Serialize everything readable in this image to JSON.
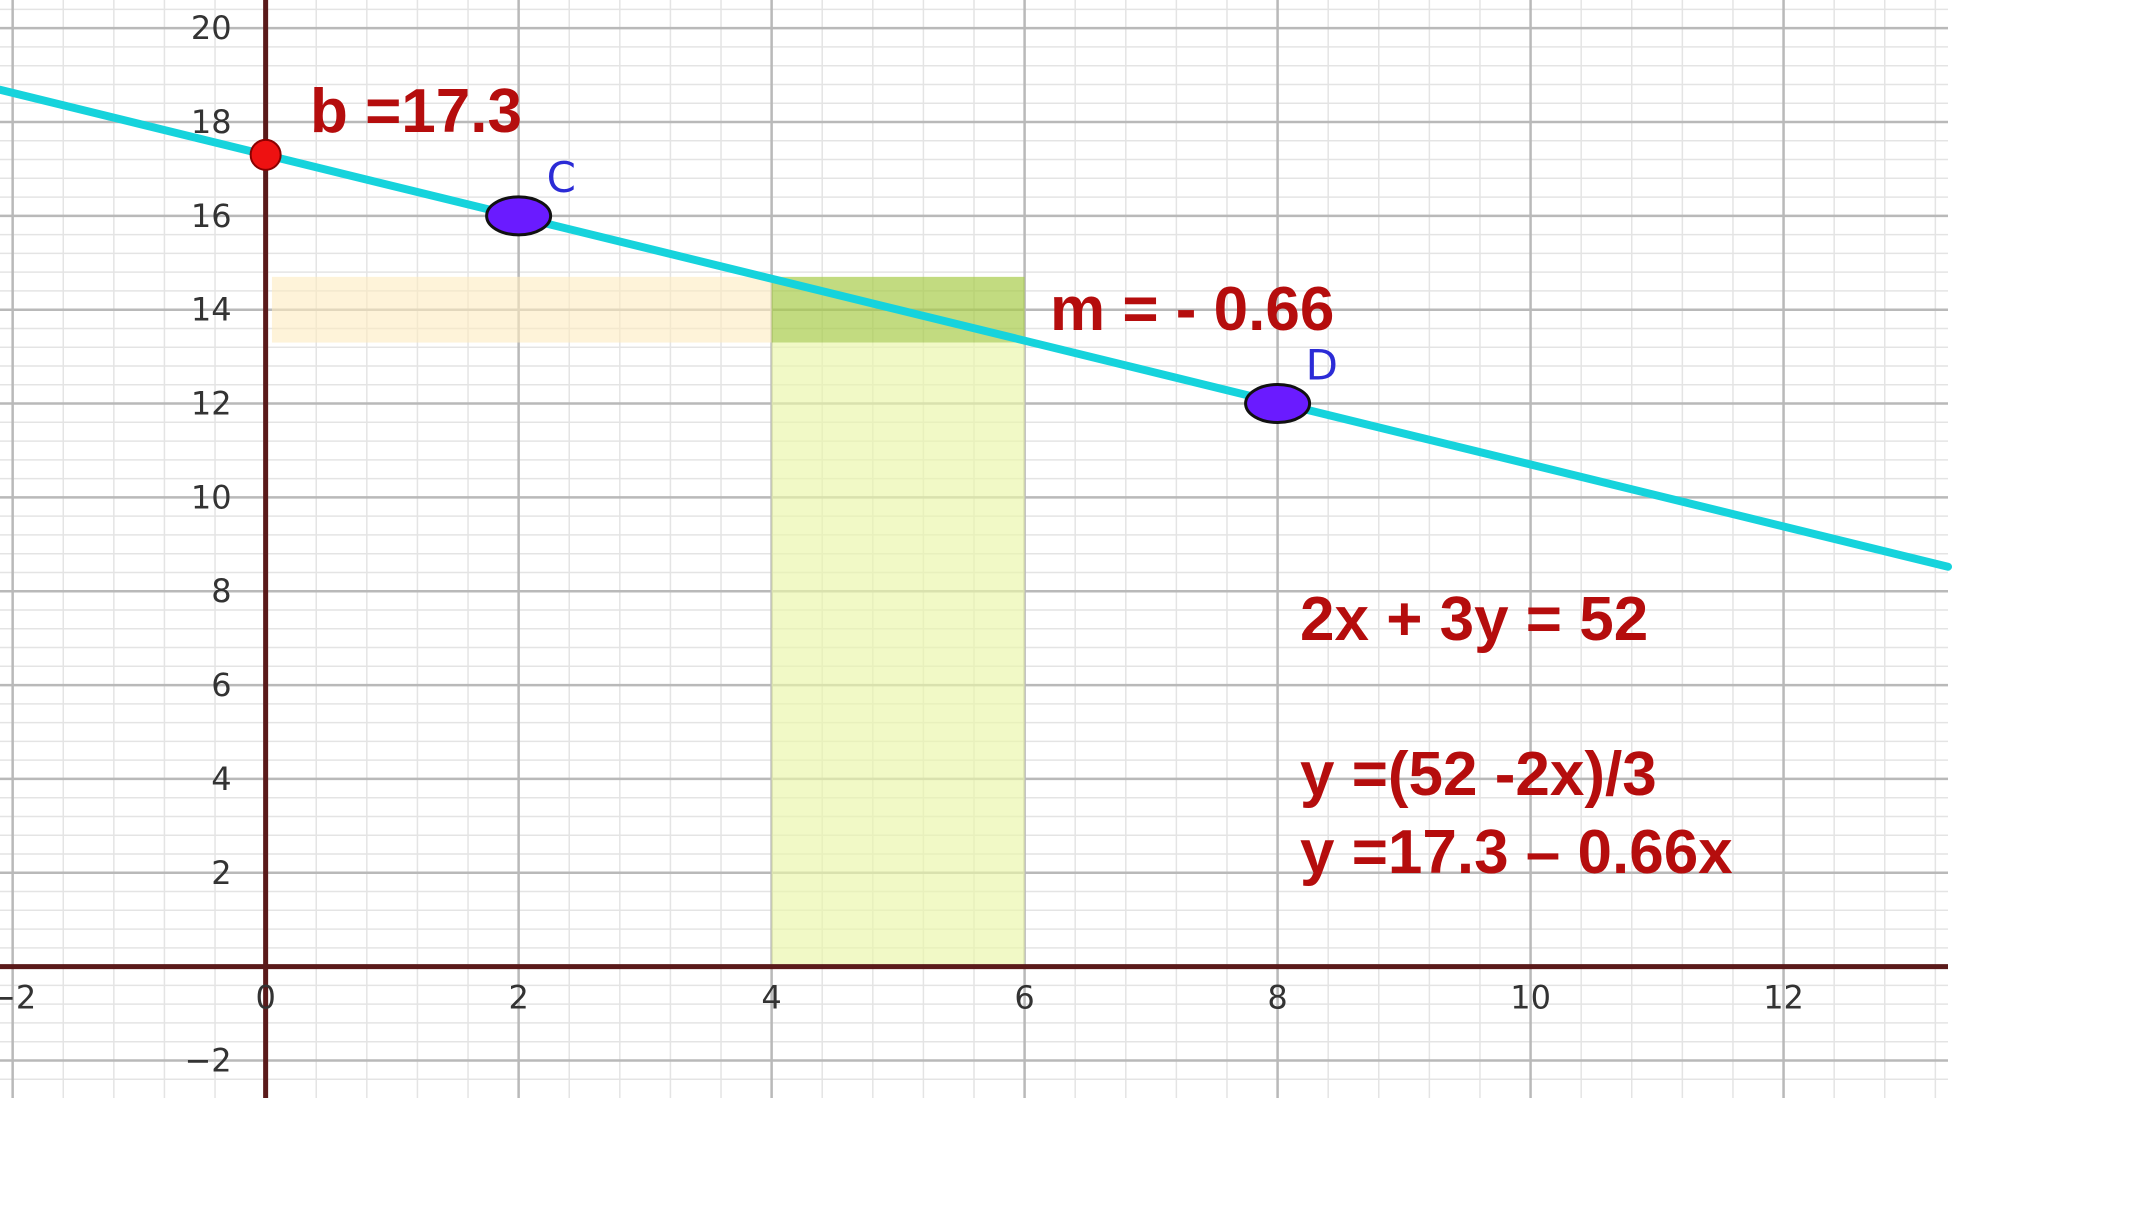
{
  "chart_data": {
    "type": "line",
    "title": "",
    "xlabel": "",
    "ylabel": "",
    "xlim": [
      -2.1,
      13.3
    ],
    "ylim": [
      -2.8,
      20.6
    ],
    "grid": true,
    "x_ticks": [
      -2,
      0,
      2,
      4,
      6,
      8,
      10,
      12
    ],
    "x_tick_labels": [
      "−2",
      "0",
      "2",
      "4",
      "6",
      "8",
      "10",
      "12"
    ],
    "y_ticks": [
      -2,
      2,
      4,
      6,
      8,
      10,
      12,
      14,
      16,
      18,
      20
    ],
    "y_tick_labels": [
      "−2",
      "2",
      "4",
      "6",
      "8",
      "10",
      "12",
      "14",
      "16",
      "18",
      "20"
    ],
    "line": {
      "intercept": 17.3,
      "slope": -0.66,
      "color": "#16d3dc"
    },
    "points": [
      {
        "label": "C",
        "x": 2,
        "y": 16,
        "color": "#6a1bff"
      },
      {
        "label": "D",
        "x": 8,
        "y": 12,
        "color": "#6a1bff"
      }
    ],
    "intercept_point": {
      "x": 0,
      "y": 17.3,
      "color": "#ee1111"
    },
    "shaded_regions": [
      {
        "x": [
          0.05,
          4
        ],
        "y": [
          13.3,
          14.7
        ],
        "color": "#fdebbf",
        "opacity": 0.6
      },
      {
        "x": [
          4,
          6
        ],
        "y": [
          13.3,
          14.7
        ],
        "color": "#a8cc4a",
        "opacity": 0.7
      },
      {
        "x": [
          4,
          6
        ],
        "y": [
          0,
          13.3
        ],
        "color": "#e9f6a8",
        "opacity": 0.65
      }
    ],
    "annotations": {
      "intercept": "b =17.3",
      "slope": "m = - 0.66",
      "equation": "2x + 3y = 52",
      "solved": "y =(52 -2x)/3",
      "slope_intercept": "y =17.3 – 0.66x"
    }
  }
}
